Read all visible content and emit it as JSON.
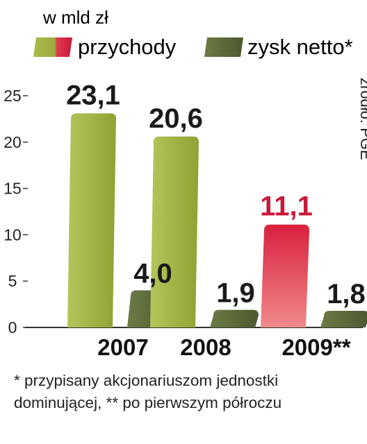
{
  "unit_label": "w mld zł",
  "source": "źródło: PGE",
  "footnote": [
    "* przypisany akcjonariuszom jednostki",
    "dominującej, ** po pierwszym półroczu"
  ],
  "colors": {
    "przychody": "#9cad3c",
    "przychody_highlight": "#d93a52",
    "zysk": "#5c6a3c",
    "label_dark": "#1a1a1a",
    "label_highlight": "#c8193c"
  },
  "chart_data": {
    "type": "bar",
    "categories": [
      "2007",
      "2008",
      "2009**"
    ],
    "series": [
      {
        "name": "przychody",
        "values": [
          23.1,
          20.6,
          11.1
        ],
        "labels": [
          "23,1",
          "20,6",
          "11,1"
        ]
      },
      {
        "name": "zysk netto*",
        "values": [
          4.0,
          1.9,
          1.8
        ],
        "labels": [
          "4,0",
          "1,9",
          "1,8"
        ]
      }
    ],
    "highlight_category": "2009**",
    "yticks": [
      "0",
      "5",
      "10",
      "15",
      "20",
      "25"
    ],
    "ylim": [
      0,
      25
    ],
    "grid": false,
    "legend": "top"
  }
}
